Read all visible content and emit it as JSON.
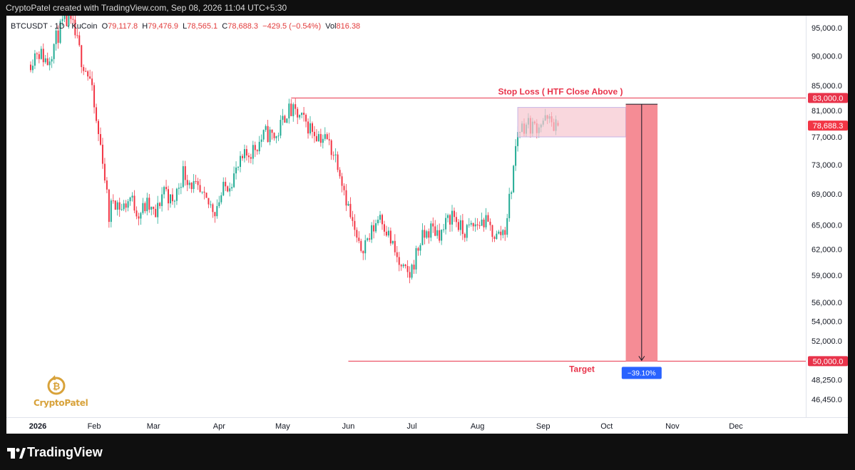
{
  "header": {
    "credit": "CryptoPatel created with TradingView.com, Sep 08, 2026 11:04 UTC+5:30"
  },
  "legend": {
    "symbol": "BTCUSDT · 1D · KuCoin",
    "open_label": "O",
    "open": "79,117.8",
    "high_label": "H",
    "high": "79,476.9",
    "low_label": "L",
    "low": "78,565.1",
    "close_label": "C",
    "close": "78,688.3",
    "change": "−429.5 (−0.54%)",
    "vol_label": "Vol",
    "vol": "816.38"
  },
  "watermark": {
    "brand": "CryptoPatel"
  },
  "footer": {
    "brand": "TradingView"
  },
  "colors": {
    "up": "#22ab94",
    "down": "#f23645",
    "line": "#e8334a",
    "zone": "#f7c6cf",
    "box": "#f4868f",
    "badge": "#2962ff"
  },
  "chart_data": {
    "type": "candlestick",
    "symbol": "BTCUSDT",
    "interval": "1D",
    "exchange": "KuCoin",
    "y_scale": "log",
    "y_ticks": [
      "95,000.0",
      "90,000.0",
      "85,000.0",
      "81,000.0",
      "77,000.0",
      "73,000.0",
      "69,000.0",
      "65,000.0",
      "62,000.0",
      "59,000.0",
      "56,000.0",
      "54,000.0",
      "52,000.0",
      "48,250.0",
      "46,450.0"
    ],
    "x_ticks": [
      "2026",
      "Feb",
      "Mar",
      "Apr",
      "May",
      "Jun",
      "Jul",
      "Aug",
      "Sep",
      "Oct",
      "Nov",
      "Dec"
    ],
    "price_labels": [
      {
        "value": "83,000.0",
        "kind": "stop"
      },
      {
        "value": "78,688.3",
        "kind": "last"
      },
      {
        "value": "50,000.0",
        "kind": "target"
      }
    ],
    "annotations": {
      "stop_loss": {
        "label": "Stop Loss ( HTF Close Above )",
        "price": 83000,
        "from": "2026-05-05"
      },
      "target": {
        "label": "Target",
        "price": 50000,
        "from": "2026-06-01"
      },
      "consolidation_zone": {
        "from": "2026-08-20",
        "to": "2026-10-10",
        "top": 81500,
        "bottom": 77000
      },
      "projection": {
        "from": "2026-10-10",
        "to": "2026-10-25",
        "top": 82000,
        "bottom": 50000,
        "change": "−39.10%"
      }
    },
    "path": [
      [
        "2026-01-01",
        88500
      ],
      [
        "2026-01-05",
        91000
      ],
      [
        "2026-01-10",
        89000
      ],
      [
        "2026-01-14",
        93000
      ],
      [
        "2026-01-18",
        96500
      ],
      [
        "2026-01-22",
        95000
      ],
      [
        "2026-01-26",
        89500
      ],
      [
        "2026-01-30",
        86000
      ],
      [
        "2026-02-02",
        79000
      ],
      [
        "2026-02-05",
        74000
      ],
      [
        "2026-02-08",
        66000
      ],
      [
        "2026-02-10",
        68500
      ],
      [
        "2026-02-14",
        67000
      ],
      [
        "2026-02-18",
        68500
      ],
      [
        "2026-02-22",
        66500
      ],
      [
        "2026-02-26",
        67500
      ],
      [
        "2026-03-02",
        66000
      ],
      [
        "2026-03-06",
        70000
      ],
      [
        "2026-03-10",
        67500
      ],
      [
        "2026-03-15",
        72000
      ],
      [
        "2026-03-20",
        70000
      ],
      [
        "2026-03-25",
        68000
      ],
      [
        "2026-03-30",
        67000
      ],
      [
        "2026-04-03",
        69500
      ],
      [
        "2026-04-08",
        71500
      ],
      [
        "2026-04-13",
        74000
      ],
      [
        "2026-04-18",
        75500
      ],
      [
        "2026-04-23",
        77500
      ],
      [
        "2026-04-28",
        77000
      ],
      [
        "2026-05-03",
        81000
      ],
      [
        "2026-05-07",
        80500
      ],
      [
        "2026-05-12",
        79000
      ],
      [
        "2026-05-17",
        77500
      ],
      [
        "2026-05-22",
        76500
      ],
      [
        "2026-05-27",
        73500
      ],
      [
        "2026-06-02",
        66000
      ],
      [
        "2026-06-06",
        62000
      ],
      [
        "2026-06-11",
        63500
      ],
      [
        "2026-06-16",
        66500
      ],
      [
        "2026-06-21",
        63000
      ],
      [
        "2026-06-26",
        59500
      ],
      [
        "2026-06-30",
        59000
      ],
      [
        "2026-07-05",
        63000
      ],
      [
        "2026-07-10",
        64500
      ],
      [
        "2026-07-15",
        64000
      ],
      [
        "2026-07-20",
        66500
      ],
      [
        "2026-07-25",
        64000
      ],
      [
        "2026-07-30",
        64800
      ],
      [
        "2026-08-04",
        65500
      ],
      [
        "2026-08-10",
        63500
      ],
      [
        "2026-08-14",
        64500
      ],
      [
        "2026-08-17",
        70000
      ],
      [
        "2026-08-20",
        78000
      ],
      [
        "2026-08-24",
        79000
      ],
      [
        "2026-08-28",
        78500
      ],
      [
        "2026-09-01",
        79500
      ],
      [
        "2026-09-04",
        79200
      ],
      [
        "2026-09-08",
        78688
      ]
    ]
  }
}
